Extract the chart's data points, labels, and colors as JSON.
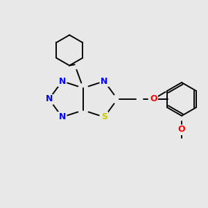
{
  "bg_color": "#e8e8e8",
  "atom_colors": {
    "N": "#0000ff",
    "S": "#cccc00",
    "O": "#ff0000",
    "C": "#000000"
  },
  "bond_color": "#000000",
  "font_size_atom": 9,
  "font_size_small": 7
}
